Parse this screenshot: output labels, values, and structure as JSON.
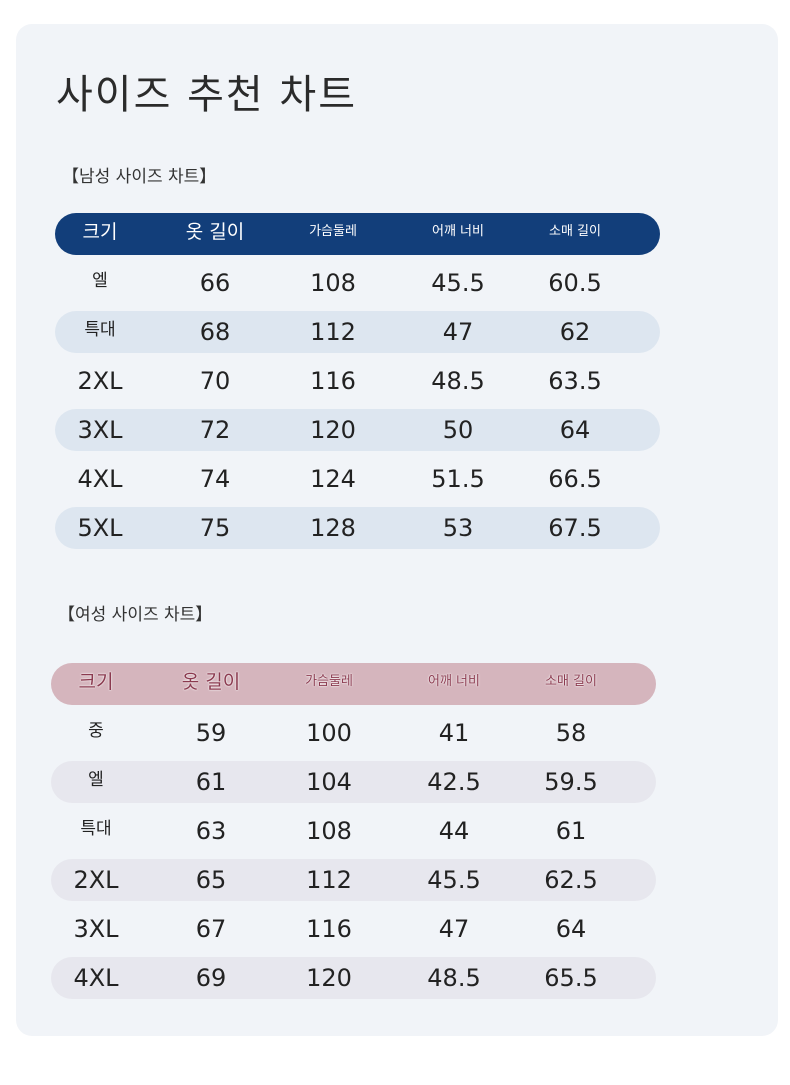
{
  "title": "사이즈 추천 차트",
  "men": {
    "label": "【남성 사이즈 차트】",
    "headers": [
      "크기",
      "옷 길이",
      "가슴둘레",
      "어깨 너비",
      "소매 길이"
    ],
    "rows": [
      [
        "엘",
        "66",
        "108",
        "45.5",
        "60.5"
      ],
      [
        "특대",
        "68",
        "112",
        "47",
        "62"
      ],
      [
        "2XL",
        "70",
        "116",
        "48.5",
        "63.5"
      ],
      [
        "3XL",
        "72",
        "120",
        "50",
        "64"
      ],
      [
        "4XL",
        "74",
        "124",
        "51.5",
        "66.5"
      ],
      [
        "5XL",
        "75",
        "128",
        "53",
        "67.5"
      ]
    ]
  },
  "women": {
    "label": "【여성 사이즈 차트】",
    "headers": [
      "크기",
      "옷 길이",
      "가슴둘레",
      "어깨 너비",
      "소매 길이"
    ],
    "rows": [
      [
        "중",
        "59",
        "100",
        "41",
        "58"
      ],
      [
        "엘",
        "61",
        "104",
        "42.5",
        "59.5"
      ],
      [
        "특대",
        "63",
        "108",
        "44",
        "61"
      ],
      [
        "2XL",
        "65",
        "112",
        "45.5",
        "62.5"
      ],
      [
        "3XL",
        "67",
        "116",
        "47",
        "64"
      ],
      [
        "4XL",
        "69",
        "120",
        "48.5",
        "65.5"
      ]
    ]
  },
  "colors": {
    "men_header": "#123e7a",
    "men_alt_row": "#dde6f0",
    "women_header": "#d5b5bd",
    "women_alt_row": "#e7e7ee",
    "card_background": "#f1f4f8"
  }
}
